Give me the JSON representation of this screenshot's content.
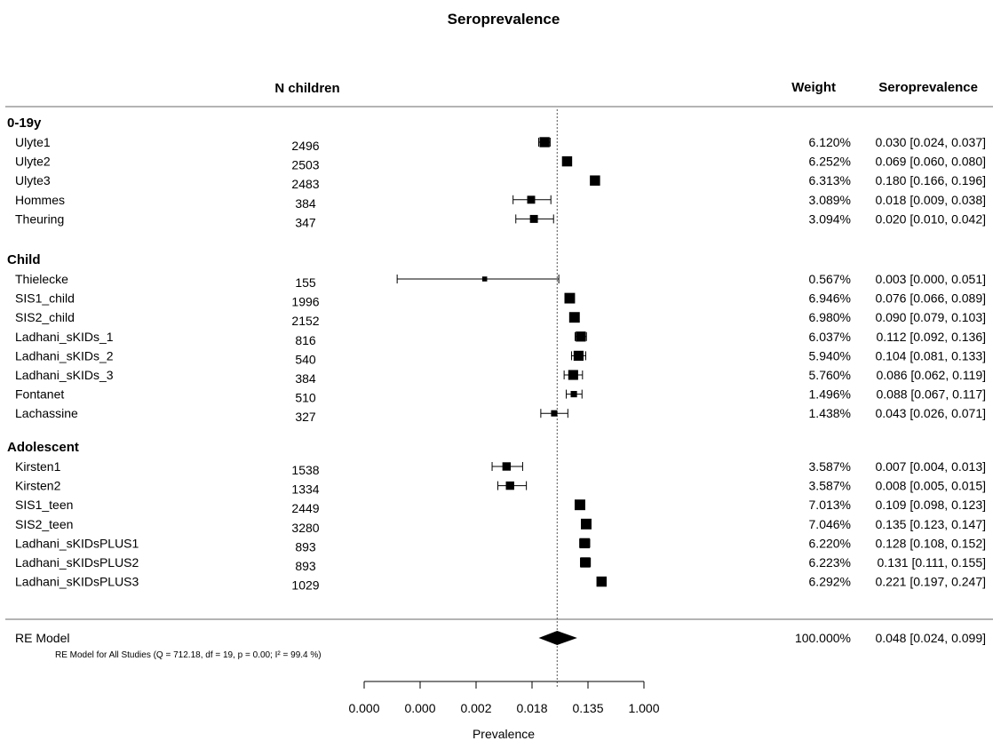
{
  "chart_data": {
    "type": "forest",
    "title": "Seroprevalence",
    "columns": {
      "n": "N children",
      "weight": "Weight",
      "estimate": "Seroprevalence"
    },
    "xlabel": "Prevalence",
    "x_ticks": [
      "0.000",
      "0.000",
      "0.002",
      "0.018",
      "0.135",
      "1.000"
    ],
    "reference_line": "RE Model estimate (dotted)",
    "groups": [
      {
        "label": "0-19y",
        "studies": [
          {
            "name": "Ulyte1",
            "n": "2496",
            "weight": "6.120%",
            "ci_text": "0.030 [0.024, 0.037]",
            "est": 0.03,
            "lo": 0.024,
            "hi": 0.037
          },
          {
            "name": "Ulyte2",
            "n": "2503",
            "weight": "6.252%",
            "ci_text": "0.069 [0.060, 0.080]",
            "est": 0.069,
            "lo": 0.06,
            "hi": 0.08
          },
          {
            "name": "Ulyte3",
            "n": "2483",
            "weight": "6.313%",
            "ci_text": "0.180 [0.166, 0.196]",
            "est": 0.18,
            "lo": 0.166,
            "hi": 0.196
          },
          {
            "name": "Hommes",
            "n": "384",
            "weight": "3.089%",
            "ci_text": "0.018 [0.009, 0.038]",
            "est": 0.018,
            "lo": 0.009,
            "hi": 0.038
          },
          {
            "name": "Theuring",
            "n": "347",
            "weight": "3.094%",
            "ci_text": "0.020 [0.010, 0.042]",
            "est": 0.02,
            "lo": 0.01,
            "hi": 0.042
          }
        ]
      },
      {
        "label": "Child",
        "studies": [
          {
            "name": "Thielecke",
            "n": "155",
            "weight": "0.567%",
            "ci_text": "0.003 [0.000, 0.051]",
            "est": 0.003,
            "lo": 0.0,
            "hi": 0.051
          },
          {
            "name": "SIS1_child",
            "n": "1996",
            "weight": "6.946%",
            "ci_text": "0.076 [0.066, 0.089]",
            "est": 0.076,
            "lo": 0.066,
            "hi": 0.089
          },
          {
            "name": "SIS2_child",
            "n": "2152",
            "weight": "6.980%",
            "ci_text": "0.090 [0.079, 0.103]",
            "est": 0.09,
            "lo": 0.079,
            "hi": 0.103
          },
          {
            "name": "Ladhani_sKIDs_1",
            "n": "816",
            "weight": "6.037%",
            "ci_text": "0.112 [0.092, 0.136]",
            "est": 0.112,
            "lo": 0.092,
            "hi": 0.136
          },
          {
            "name": "Ladhani_sKIDs_2",
            "n": "540",
            "weight": "5.940%",
            "ci_text": "0.104 [0.081, 0.133]",
            "est": 0.104,
            "lo": 0.081,
            "hi": 0.133
          },
          {
            "name": "Ladhani_sKIDs_3",
            "n": "384",
            "weight": "5.760%",
            "ci_text": "0.086 [0.062, 0.119]",
            "est": 0.086,
            "lo": 0.062,
            "hi": 0.119
          },
          {
            "name": "Fontanet",
            "n": "510",
            "weight": "1.496%",
            "ci_text": "0.088 [0.067, 0.117]",
            "est": 0.088,
            "lo": 0.067,
            "hi": 0.117
          },
          {
            "name": "Lachassine",
            "n": "327",
            "weight": "1.438%",
            "ci_text": "0.043 [0.026, 0.071]",
            "est": 0.043,
            "lo": 0.026,
            "hi": 0.071
          }
        ]
      },
      {
        "label": "Adolescent",
        "studies": [
          {
            "name": "Kirsten1",
            "n": "1538",
            "weight": "3.587%",
            "ci_text": "0.007 [0.004, 0.013]",
            "est": 0.007,
            "lo": 0.004,
            "hi": 0.013
          },
          {
            "name": "Kirsten2",
            "n": "1334",
            "weight": "3.587%",
            "ci_text": "0.008 [0.005, 0.015]",
            "est": 0.008,
            "lo": 0.005,
            "hi": 0.015
          },
          {
            "name": "SIS1_teen",
            "n": "2449",
            "weight": "7.013%",
            "ci_text": "0.109 [0.098, 0.123]",
            "est": 0.109,
            "lo": 0.098,
            "hi": 0.123
          },
          {
            "name": "SIS2_teen",
            "n": "3280",
            "weight": "7.046%",
            "ci_text": "0.135 [0.123, 0.147]",
            "est": 0.135,
            "lo": 0.123,
            "hi": 0.147
          },
          {
            "name": "Ladhani_sKIDsPLUS1",
            "n": "893",
            "weight": "6.220%",
            "ci_text": "0.128 [0.108, 0.152]",
            "est": 0.128,
            "lo": 0.108,
            "hi": 0.152
          },
          {
            "name": "Ladhani_sKIDsPLUS2",
            "n": "893",
            "weight": "6.223%",
            "ci_text": "0.131 [0.111, 0.155]",
            "est": 0.131,
            "lo": 0.111,
            "hi": 0.155
          },
          {
            "name": "Ladhani_sKIDsPLUS3",
            "n": "1029",
            "weight": "6.292%",
            "ci_text": "0.221 [0.197, 0.247]",
            "est": 0.221,
            "lo": 0.197,
            "hi": 0.247
          }
        ]
      }
    ],
    "summary": {
      "name": "RE Model",
      "note": "RE Model for All Studies (Q = 712.18, df = 19, p = 0.00; I² = 99.4 %)",
      "weight": "100.000%",
      "ci_text": "0.048 [0.024, 0.099]",
      "est": 0.048,
      "lo": 0.024,
      "hi": 0.099
    }
  }
}
